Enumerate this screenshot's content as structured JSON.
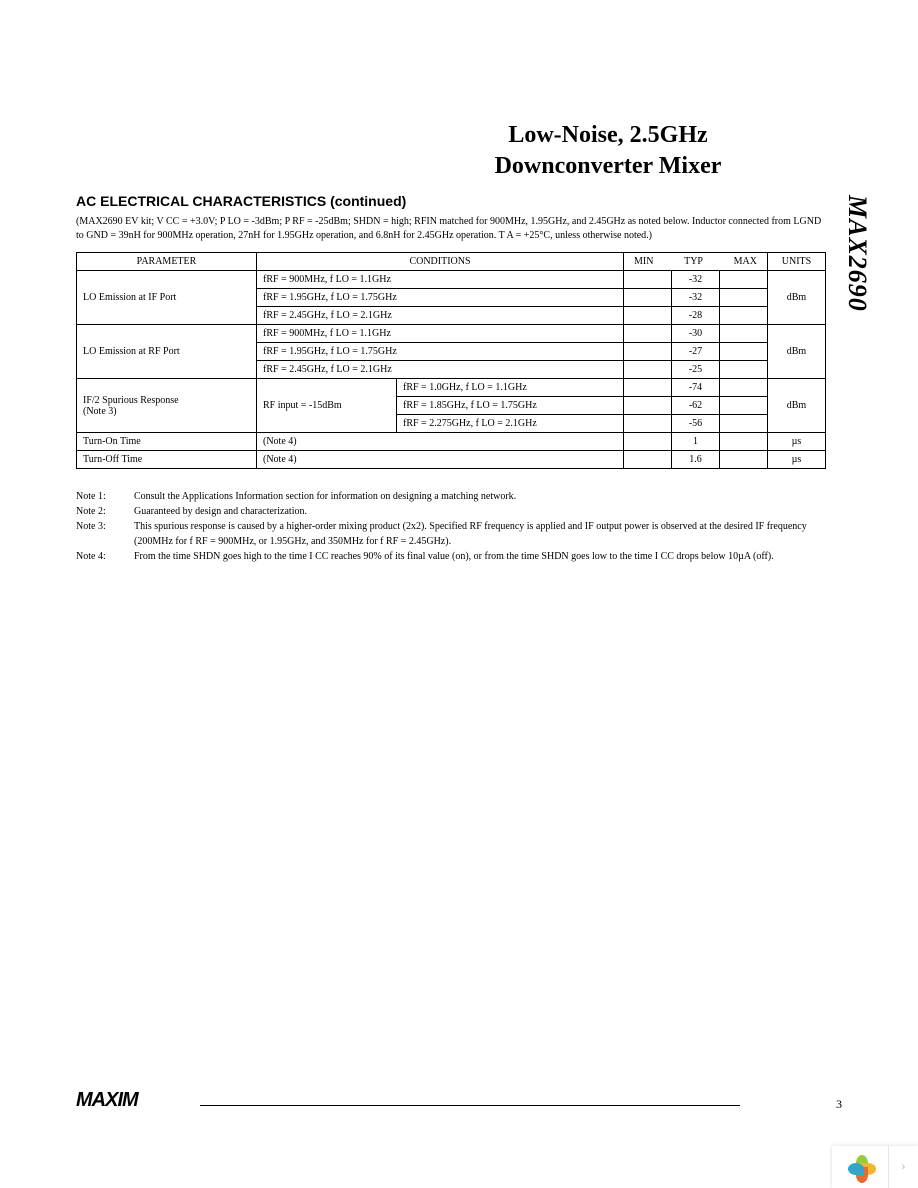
{
  "title_line1": "Low-Noise, 2.5GHz",
  "title_line2": "Downconverter Mixer",
  "vertical_label": "MAX2690",
  "section_title": "AC ELECTRICAL CHARACTERISTICS (continued)",
  "conditions_text": "(MAX2690 EV kit; V CC = +3.0V; P LO = -3dBm; P RF = -25dBm; SHDN = high; RFIN matched for 900MHz, 1.95GHz, and 2.45GHz as noted below. Inductor connected from LGND to GND = 39nH for 900MHz operation, 27nH for 1.95GHz operation, and 6.8nH for 2.45GHz operation. T A = +25°C, unless otherwise noted.)",
  "table": {
    "headers": {
      "parameter": "PARAMETER",
      "conditions": "CONDITIONS",
      "min": "MIN",
      "typ": "TYP",
      "max": "MAX",
      "units": "UNITS"
    },
    "groups": [
      {
        "parameter": "LO Emission at IF Port",
        "units": "dBm",
        "rows": [
          {
            "cond": "fRF = 900MHz, f LO = 1.1GHz",
            "min": "",
            "typ": "-32",
            "max": ""
          },
          {
            "cond": "fRF = 1.95GHz, f LO = 1.75GHz",
            "min": "",
            "typ": "-32",
            "max": ""
          },
          {
            "cond": "fRF = 2.45GHz, f LO = 2.1GHz",
            "min": "",
            "typ": "-28",
            "max": ""
          }
        ]
      },
      {
        "parameter": "LO Emission at RF Port",
        "units": "dBm",
        "rows": [
          {
            "cond": "fRF = 900MHz, f LO = 1.1GHz",
            "min": "",
            "typ": "-30",
            "max": ""
          },
          {
            "cond": "fRF = 1.95GHz, f LO = 1.75GHz",
            "min": "",
            "typ": "-27",
            "max": ""
          },
          {
            "cond": "fRF = 2.45GHz, f LO = 2.1GHz",
            "min": "",
            "typ": "-25",
            "max": ""
          }
        ]
      },
      {
        "parameter": "IF/2 Spurious Response\n(Note 3)",
        "units": "dBm",
        "cond_prefix": "RF input = -15dBm",
        "rows": [
          {
            "cond": "fRF = 1.0GHz, f LO = 1.1GHz",
            "min": "",
            "typ": "-74",
            "max": ""
          },
          {
            "cond": "fRF = 1.85GHz, f LO = 1.75GHz",
            "min": "",
            "typ": "-62",
            "max": ""
          },
          {
            "cond": "fRF = 2.275GHz, f LO = 2.1GHz",
            "min": "",
            "typ": "-56",
            "max": ""
          }
        ]
      },
      {
        "parameter": "Turn-On Time",
        "units": "µs",
        "rows": [
          {
            "cond": "(Note 4)",
            "min": "",
            "typ": "1",
            "max": ""
          }
        ]
      },
      {
        "parameter": "Turn-Off Time",
        "units": "µs",
        "rows": [
          {
            "cond": "(Note 4)",
            "min": "",
            "typ": "1.6",
            "max": ""
          }
        ]
      }
    ]
  },
  "notes": [
    {
      "label": "Note 1:",
      "text": "Consult the Applications Information section for information on designing a matching network."
    },
    {
      "label": "Note 2:",
      "text": "Guaranteed by design and characterization."
    },
    {
      "label": "Note 3:",
      "text": "This spurious response is caused by a higher-order mixing product (2x2). Specified RF frequency is applied and IF output power is observed at the desired IF frequency (200MHz for f RF = 900MHz, or 1.95GHz, and 350MHz for f RF = 2.45GHz)."
    },
    {
      "label": "Note 4:",
      "text": "From the time SHDN goes high to the time I CC reaches 90% of its final value (on), or from the time SHDN goes low to the time I CC drops below 10µA (off)."
    }
  ],
  "footer": {
    "logo": "MAXIM",
    "page": "3"
  },
  "widget": {
    "colors": [
      "#9acb3d",
      "#f2b632",
      "#e86b2f",
      "#32a6c6"
    ]
  }
}
